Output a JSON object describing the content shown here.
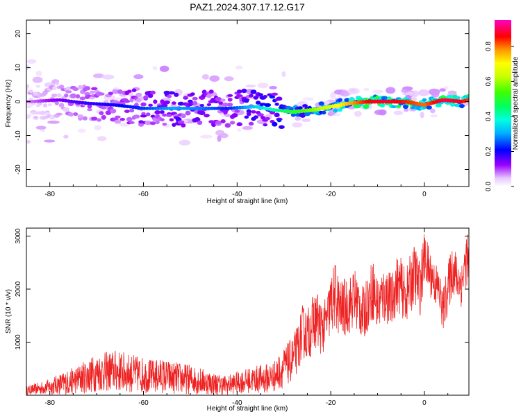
{
  "title": "PAZ1.2024.307.17.12.G17",
  "colors": {
    "snr_line": "#ee2222",
    "axis": "#000000"
  },
  "chart_data": [
    {
      "type": "heatmap",
      "panel": "spectrogram",
      "xlabel": "Height of straight line (km)",
      "ylabel": "Frequency (Hz)",
      "xlim": [
        -85,
        9.5
      ],
      "ylim": [
        -25,
        24
      ],
      "x_ticks": [
        -80,
        -60,
        -40,
        -20,
        0
      ],
      "y_ticks": [
        -20,
        -10,
        0,
        10,
        20
      ],
      "colorbar": {
        "label": "Normalized spectral amplitude",
        "range": [
          0,
          0.95
        ],
        "ticks": [
          0.0,
          0.2,
          0.4,
          0.6,
          0.8
        ],
        "colormap": "gist_ncar"
      },
      "ridge": {
        "x": [
          -84,
          -78,
          -72,
          -66,
          -60,
          -54,
          -48,
          -42,
          -36,
          -32,
          -28,
          -24,
          -20,
          -16,
          -12,
          -8,
          -4,
          0,
          4,
          8,
          9.5
        ],
        "y": [
          0,
          0.5,
          -0.5,
          -1,
          -2,
          -2,
          -2,
          -2,
          -1.5,
          -2.5,
          -3,
          -2.5,
          -1.5,
          -0.5,
          0,
          0,
          0,
          -1,
          0.5,
          0,
          0.5
        ]
      },
      "amplitude": {
        "x": [
          -84,
          -78,
          -72,
          -66,
          -60,
          -54,
          -48,
          -42,
          -36,
          -32,
          -28,
          -24,
          -20,
          -16,
          -12,
          -8,
          -4,
          0,
          4,
          8,
          9.5
        ],
        "values": [
          0.08,
          0.14,
          0.18,
          0.2,
          0.24,
          0.3,
          0.28,
          0.22,
          0.34,
          0.42,
          0.5,
          0.58,
          0.66,
          0.76,
          0.86,
          0.88,
          0.84,
          0.8,
          0.9,
          0.86,
          0.82
        ]
      }
    },
    {
      "type": "line",
      "panel": "snr",
      "xlabel": "Height of straight line (km)",
      "ylabel": "SNR (10 * v/v)",
      "xlim": [
        -85,
        9.5
      ],
      "ylim": [
        0,
        3150
      ],
      "x_ticks": [
        -80,
        -60,
        -40,
        -20,
        0
      ],
      "y_ticks": [
        1000,
        2000,
        3000
      ],
      "series": [
        {
          "x": [
            -85,
            -82,
            -80,
            -78,
            -76,
            -74,
            -72,
            -70,
            -68,
            -66,
            -64,
            -62,
            -60,
            -58,
            -56,
            -54,
            -52,
            -50,
            -48,
            -46,
            -44,
            -42,
            -40,
            -38,
            -36,
            -34,
            -32,
            -30,
            -28,
            -27,
            -26,
            -25,
            -24,
            -23,
            -22,
            -21,
            -20,
            -19,
            -18,
            -17,
            -16,
            -15,
            -14,
            -13,
            -12,
            -11,
            -10,
            -9,
            -8,
            -7,
            -6,
            -5,
            -4,
            -3,
            -2,
            -1,
            0,
            1,
            2,
            3,
            4,
            5,
            6,
            7,
            8,
            9,
            9.5
          ],
          "values": [
            90,
            130,
            160,
            210,
            240,
            300,
            360,
            420,
            440,
            460,
            430,
            400,
            380,
            350,
            370,
            330,
            320,
            300,
            270,
            240,
            200,
            190,
            240,
            270,
            300,
            310,
            360,
            520,
            700,
            900,
            1200,
            1150,
            1300,
            1450,
            1250,
            1350,
            1700,
            1900,
            1600,
            1650,
            1700,
            1850,
            1700,
            1500,
            1800,
            2000,
            1700,
            1850,
            1900,
            1750,
            2100,
            2050,
            1850,
            2100,
            2300,
            2000,
            2600,
            2350,
            2150,
            2000,
            1600,
            2000,
            2400,
            2200,
            2100,
            2600,
            2400
          ],
          "noise_amplitude": [
            80,
            120,
            150,
            200,
            240,
            270,
            330,
            360,
            380,
            400,
            380,
            360,
            340,
            320,
            330,
            310,
            300,
            280,
            260,
            230,
            200,
            190,
            210,
            230,
            260,
            280,
            300,
            380,
            420,
            460,
            520,
            480,
            560,
            560,
            520,
            480,
            600,
            640,
            580,
            560,
            540,
            580,
            560,
            520,
            540,
            600,
            560,
            540,
            560,
            520,
            560,
            540,
            520,
            560,
            600,
            560,
            500,
            460,
            420,
            440,
            420,
            480,
            520,
            460,
            460,
            520,
            500
          ]
        }
      ]
    }
  ]
}
